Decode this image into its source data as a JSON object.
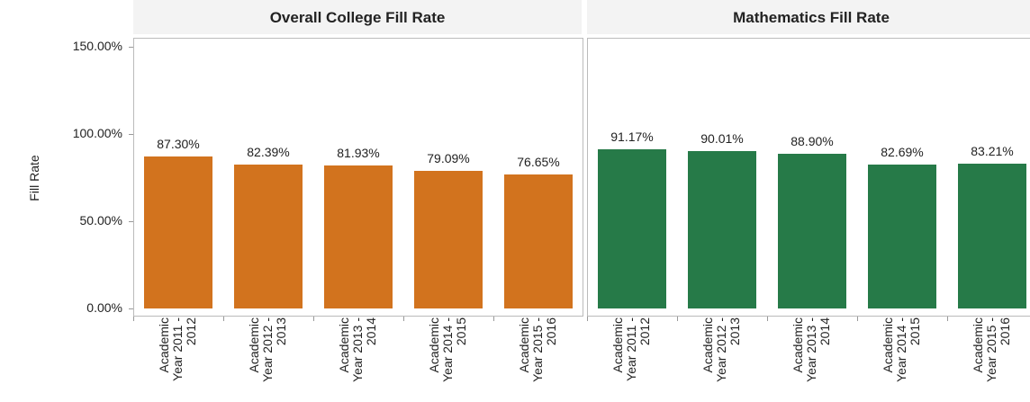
{
  "chart_data": [
    {
      "type": "bar",
      "title": "Overall College Fill Rate",
      "y_label": "Fill Rate",
      "color": "#d2731e",
      "categories": [
        "Academic Year 2011 - 2012",
        "Academic Year 2012 - 2013",
        "Academic Year 2013 - 2014",
        "Academic Year 2014 - 2015",
        "Academic Year 2015 - 2016"
      ],
      "values": [
        87.3,
        82.39,
        81.93,
        79.09,
        76.65
      ],
      "value_labels": [
        "87.30%",
        "82.39%",
        "81.93%",
        "79.09%",
        "76.65%"
      ],
      "ylim": [
        0,
        150
      ],
      "yticks": [
        {
          "value": 0,
          "label": "0.00%"
        },
        {
          "value": 50,
          "label": "50.00%"
        },
        {
          "value": 100,
          "label": "100.00%"
        },
        {
          "value": 150,
          "label": "150.00%"
        }
      ]
    },
    {
      "type": "bar",
      "title": "Mathematics Fill Rate",
      "color": "#267a48",
      "categories": [
        "Academic Year 2011 - 2012",
        "Academic Year 2012 - 2013",
        "Academic Year 2013 - 2014",
        "Academic Year 2014 - 2015",
        "Academic Year 2015 - 2016"
      ],
      "values": [
        91.17,
        90.01,
        88.9,
        82.69,
        83.21
      ],
      "value_labels": [
        "91.17%",
        "90.01%",
        "88.90%",
        "82.69%",
        "83.21%"
      ],
      "ylim": [
        0,
        150
      ]
    }
  ]
}
